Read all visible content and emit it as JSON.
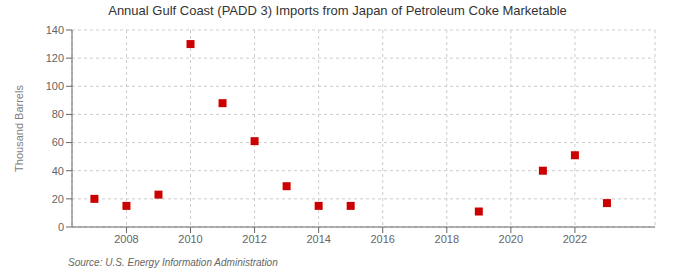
{
  "chart_data": {
    "type": "scatter",
    "title": "Annual Gulf Coast (PADD 3) Imports from Japan of Petroleum Coke Marketable",
    "ylabel": "Thousand Barrels",
    "annotations": [
      "Source: U.S. Energy Information Administration"
    ],
    "x": [
      2007,
      2008,
      2009,
      2010,
      2011,
      2012,
      2013,
      2014,
      2015,
      2019,
      2021,
      2022,
      2023
    ],
    "values": [
      20,
      15,
      23,
      130,
      88,
      61,
      29,
      15,
      15,
      11,
      40,
      51,
      17
    ],
    "color": "#cc0000",
    "marker": "square",
    "xlim": [
      2006.3,
      2024.5
    ],
    "ylim": [
      0,
      140
    ],
    "xticks": [
      2008,
      2010,
      2012,
      2014,
      2016,
      2018,
      2020,
      2022
    ],
    "yticks": [
      0,
      20,
      40,
      60,
      80,
      100,
      120,
      140
    ],
    "grid": true
  }
}
